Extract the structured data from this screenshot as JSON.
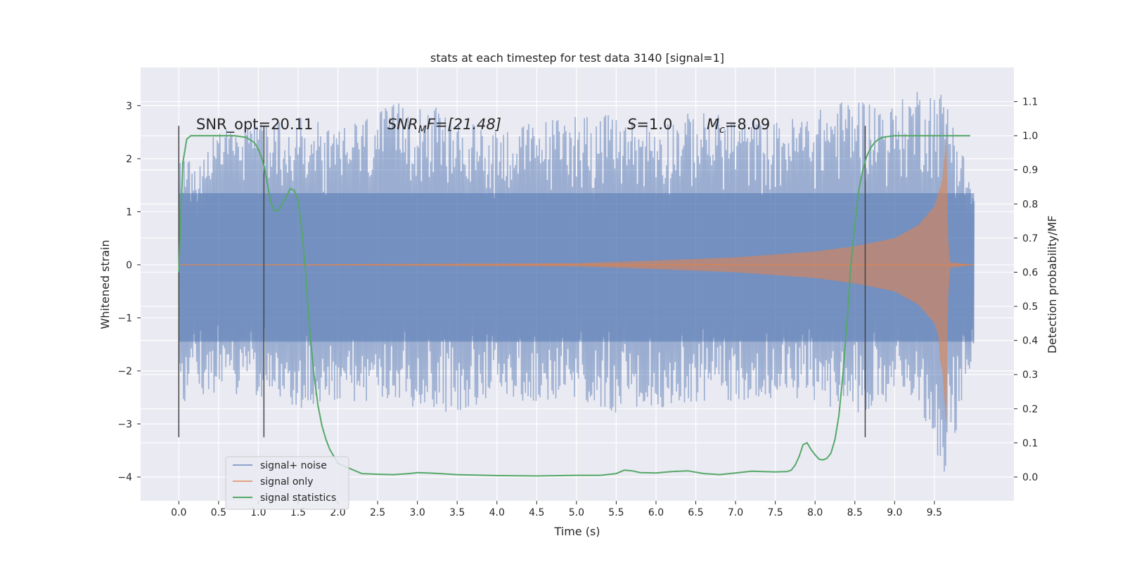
{
  "chart_data": {
    "type": "line",
    "title": "stats at each timestep for test data 3140 [signal=1]",
    "xlabel": "Time (s)",
    "ylabel": "Whitened strain",
    "y2label": "Detection probability/MF",
    "xlim": [
      -0.48,
      10.5
    ],
    "ylim": [
      -4.45,
      3.72
    ],
    "y2lim": [
      -0.07,
      1.2
    ],
    "xticks": [
      0.0,
      0.5,
      1.0,
      1.5,
      2.0,
      2.5,
      3.0,
      3.5,
      4.0,
      4.5,
      5.0,
      5.5,
      6.0,
      6.5,
      7.0,
      7.5,
      8.0,
      8.5,
      9.0,
      9.5
    ],
    "xtick_labels": [
      "0.0",
      "0.5",
      "1.0",
      "1.5",
      "2.0",
      "2.5",
      "3.0",
      "3.5",
      "4.0",
      "4.5",
      "5.0",
      "5.5",
      "6.0",
      "6.5",
      "7.0",
      "7.5",
      "8.0",
      "8.5",
      "9.0",
      "9.5"
    ],
    "yticks": [
      -4,
      -3,
      -2,
      -1,
      0,
      1,
      2,
      3
    ],
    "ytick_labels": [
      "−4",
      "−3",
      "−2",
      "−1",
      "0",
      "1",
      "2",
      "3"
    ],
    "y2ticks": [
      0.0,
      0.1,
      0.2,
      0.3,
      0.4,
      0.5,
      0.6,
      0.7,
      0.8,
      0.9,
      1.0,
      1.1
    ],
    "y2tick_labels": [
      "0.0",
      "0.1",
      "0.2",
      "0.3",
      "0.4",
      "0.5",
      "0.6",
      "0.7",
      "0.8",
      "0.9",
      "1.0",
      "1.1"
    ],
    "grid": true,
    "legend_position": "lower-left",
    "annotations": {
      "snr_opt": "SNR_opt=20.11",
      "snr_mf_base": "SNR",
      "snr_mf_sub": "M",
      "snr_mf_rest": "F=[21.48]",
      "s_italic": "S",
      "s_rest": "=1.0",
      "mc_base": "M",
      "mc_sub": "c",
      "mc_rest": "=8.09"
    },
    "vlines_x": [
      0.0,
      1.07,
      8.63
    ],
    "vlines_yrange": [
      -3.25,
      2.62
    ],
    "series": [
      {
        "name": "signal+ noise",
        "color": "#4c72b0",
        "alpha": 0.5,
        "x_range": [
          0.0,
          10.0
        ],
        "noise_envelope": [
          [
            0.0,
            1.9,
            -2.6
          ],
          [
            0.5,
            2.6,
            -2.4
          ],
          [
            1.0,
            2.7,
            -2.5
          ],
          [
            1.5,
            2.8,
            -2.7
          ],
          [
            2.0,
            2.6,
            -2.7
          ],
          [
            2.5,
            2.9,
            -2.6
          ],
          [
            3.0,
            3.2,
            -2.7
          ],
          [
            3.5,
            2.7,
            -2.8
          ],
          [
            4.0,
            2.6,
            -2.5
          ],
          [
            4.5,
            2.7,
            -2.6
          ],
          [
            5.0,
            2.9,
            -2.6
          ],
          [
            5.5,
            2.8,
            -2.8
          ],
          [
            6.0,
            2.7,
            -2.7
          ],
          [
            6.5,
            2.9,
            -2.6
          ],
          [
            7.0,
            2.8,
            -2.6
          ],
          [
            7.5,
            2.7,
            -2.5
          ],
          [
            8.0,
            2.9,
            -2.6
          ],
          [
            8.5,
            3.2,
            -2.8
          ],
          [
            9.0,
            3.0,
            -2.6
          ],
          [
            9.3,
            3.4,
            -2.6
          ],
          [
            9.65,
            3.25,
            -4.05
          ],
          [
            10.0,
            1.4,
            -1.6
          ]
        ]
      },
      {
        "name": "signal only",
        "color": "#dd8452",
        "alpha": 0.6,
        "chirp_envelope": [
          [
            0.0,
            0.0
          ],
          [
            5.0,
            0.03
          ],
          [
            6.0,
            0.08
          ],
          [
            7.0,
            0.14
          ],
          [
            8.0,
            0.25
          ],
          [
            8.5,
            0.35
          ],
          [
            9.0,
            0.5
          ],
          [
            9.3,
            0.75
          ],
          [
            9.5,
            1.1
          ],
          [
            9.6,
            1.6
          ],
          [
            9.65,
            2.4
          ],
          [
            9.68,
            0.05
          ],
          [
            10.0,
            0.0
          ]
        ]
      },
      {
        "name": "signal statistics",
        "color": "#55a868",
        "x": [
          0.0,
          0.05,
          0.1,
          0.15,
          0.2,
          0.3,
          0.5,
          0.7,
          0.85,
          0.95,
          1.0,
          1.05,
          1.1,
          1.15,
          1.2,
          1.25,
          1.3,
          1.35,
          1.4,
          1.45,
          1.5,
          1.55,
          1.6,
          1.65,
          1.7,
          1.75,
          1.8,
          1.85,
          1.9,
          1.95,
          2.0,
          2.1,
          2.2,
          2.3,
          2.5,
          2.7,
          2.9,
          3.0,
          3.2,
          3.5,
          4.0,
          4.5,
          5.0,
          5.3,
          5.5,
          5.6,
          5.7,
          5.8,
          6.0,
          6.2,
          6.4,
          6.6,
          6.8,
          7.0,
          7.2,
          7.5,
          7.65,
          7.7,
          7.75,
          7.8,
          7.85,
          7.9,
          7.95,
          8.0,
          8.05,
          8.1,
          8.15,
          8.2,
          8.25,
          8.3,
          8.35,
          8.4,
          8.45,
          8.5,
          8.55,
          8.6,
          8.65,
          8.7,
          8.75,
          8.8,
          8.85,
          8.9,
          9.0,
          9.2,
          9.5,
          9.8,
          9.95
        ],
        "y": [
          0.6,
          0.92,
          0.99,
          1.0,
          1.0,
          1.0,
          1.0,
          1.0,
          0.995,
          0.98,
          0.96,
          0.93,
          0.88,
          0.81,
          0.78,
          0.78,
          0.8,
          0.82,
          0.845,
          0.84,
          0.81,
          0.72,
          0.58,
          0.42,
          0.3,
          0.21,
          0.15,
          0.11,
          0.08,
          0.06,
          0.04,
          0.03,
          0.02,
          0.01,
          0.008,
          0.007,
          0.01,
          0.013,
          0.011,
          0.007,
          0.004,
          0.003,
          0.005,
          0.005,
          0.01,
          0.02,
          0.018,
          0.013,
          0.012,
          0.016,
          0.018,
          0.01,
          0.007,
          0.012,
          0.017,
          0.015,
          0.016,
          0.02,
          0.035,
          0.06,
          0.095,
          0.1,
          0.08,
          0.065,
          0.052,
          0.05,
          0.055,
          0.07,
          0.11,
          0.18,
          0.3,
          0.45,
          0.62,
          0.74,
          0.84,
          0.9,
          0.94,
          0.965,
          0.98,
          0.99,
          0.995,
          0.997,
          1.0,
          1.0,
          1.0,
          1.0,
          1.0
        ]
      }
    ]
  }
}
